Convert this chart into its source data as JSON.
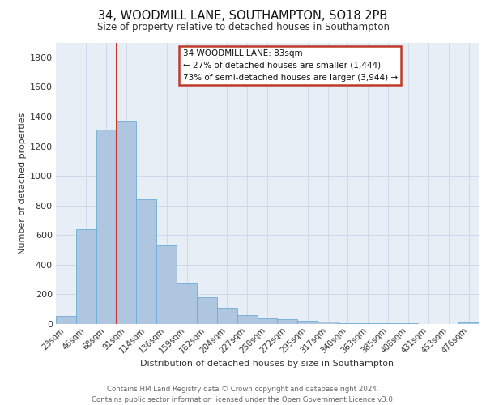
{
  "title1": "34, WOODMILL LANE, SOUTHAMPTON, SO18 2PB",
  "title2": "Size of property relative to detached houses in Southampton",
  "xlabel": "Distribution of detached houses by size in Southampton",
  "ylabel": "Number of detached properties",
  "categories": [
    "23sqm",
    "46sqm",
    "68sqm",
    "91sqm",
    "114sqm",
    "136sqm",
    "159sqm",
    "182sqm",
    "204sqm",
    "227sqm",
    "250sqm",
    "272sqm",
    "295sqm",
    "317sqm",
    "340sqm",
    "363sqm",
    "385sqm",
    "408sqm",
    "431sqm",
    "453sqm",
    "476sqm"
  ],
  "values": [
    55,
    640,
    1310,
    1375,
    840,
    530,
    275,
    183,
    107,
    62,
    40,
    35,
    22,
    14,
    5,
    5,
    5,
    5,
    2,
    2,
    12
  ],
  "bar_color": "#aec6e0",
  "bar_edge_color": "#6baed6",
  "grid_color": "#ccd6e8",
  "bg_color": "#e8eef5",
  "vline_color": "#c0392b",
  "annotation_text": "34 WOODMILL LANE: 83sqm\n← 27% of detached houses are smaller (1,444)\n73% of semi-detached houses are larger (3,944) →",
  "annotation_box_color": "#c0392b",
  "footer": "Contains HM Land Registry data © Crown copyright and database right 2024.\nContains public sector information licensed under the Open Government Licence v3.0.",
  "ylim": [
    0,
    1900
  ],
  "yticks": [
    0,
    200,
    400,
    600,
    800,
    1000,
    1200,
    1400,
    1600,
    1800
  ]
}
